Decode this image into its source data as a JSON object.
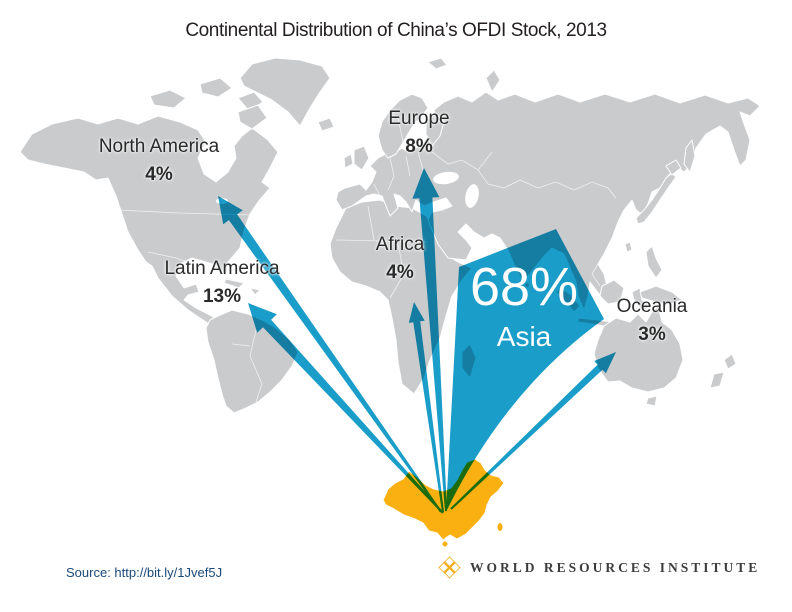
{
  "title": "Continental Distribution of China’s OFDI Stock, 2013",
  "chart_data": {
    "type": "flow-map",
    "title": "Continental Distribution of China’s OFDI Stock, 2013",
    "origin": "China",
    "unit": "% of China's OFDI stock",
    "flows": [
      {
        "continent": "North America",
        "percent": 4,
        "label": "4%"
      },
      {
        "continent": "Latin America",
        "percent": 13,
        "label": "13%"
      },
      {
        "continent": "Europe",
        "percent": 8,
        "label": "8%"
      },
      {
        "continent": "Africa",
        "percent": 4,
        "label": "4%"
      },
      {
        "continent": "Asia",
        "percent": 68,
        "label": "68%"
      },
      {
        "continent": "Oceania",
        "percent": 3,
        "label": "3%"
      }
    ]
  },
  "source": "Source: http://bit.ly/1Jvef5J",
  "logo": {
    "name": "WORLD RESOURCES INSTITUTE"
  },
  "colors": {
    "arrow_blue": "#1A9DC9",
    "china_yellow": "#FBB011",
    "land_gray": "#C9CBCD",
    "source_navy": "#1B4A7A",
    "logo_gold": "#F2AC1D"
  }
}
